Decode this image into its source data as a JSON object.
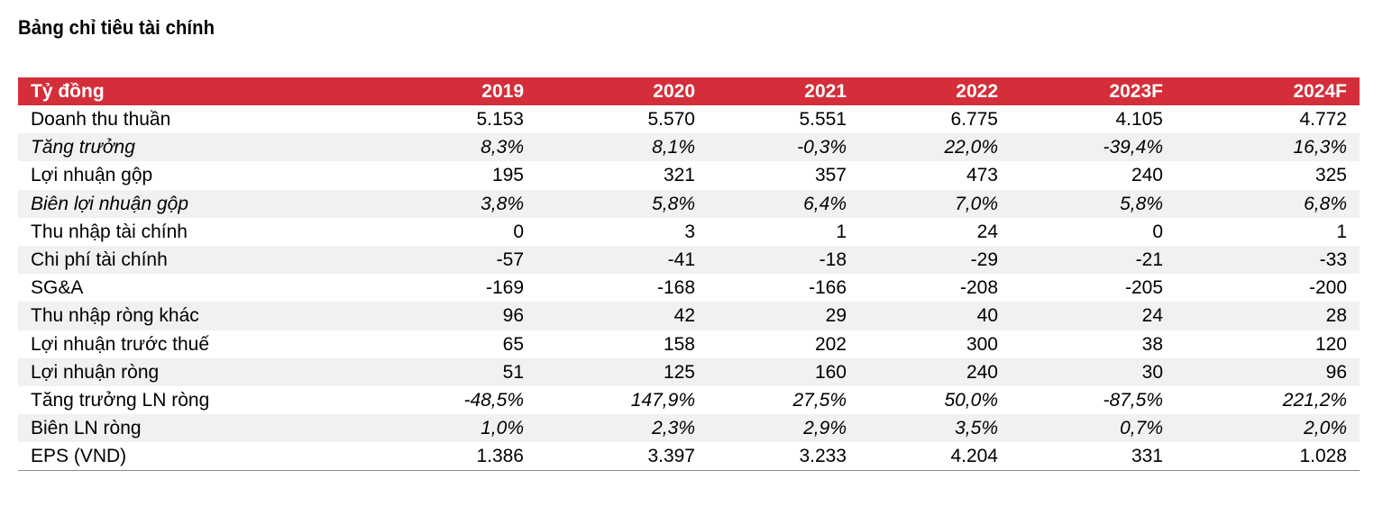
{
  "title": "Bảng chỉ tiêu tài chính",
  "header": {
    "label": "Tỷ đồng",
    "columns": [
      "2019",
      "2020",
      "2021",
      "2022",
      "2023F",
      "2024F"
    ]
  },
  "rows": [
    {
      "label": "Doanh thu thuần",
      "values": [
        "5.153",
        "5.570",
        "5.551",
        "6.775",
        "4.105",
        "4.772"
      ]
    },
    {
      "label": "Tăng trưởng",
      "values": [
        "8,3%",
        "8,1%",
        "-0,3%",
        "22,0%",
        "-39,4%",
        "16,3%"
      ]
    },
    {
      "label": "Lợi nhuận gộp",
      "values": [
        "195",
        "321",
        "357",
        "473",
        "240",
        "325"
      ]
    },
    {
      "label": "Biên lợi nhuận gộp",
      "values": [
        "3,8%",
        "5,8%",
        "6,4%",
        "7,0%",
        "5,8%",
        "6,8%"
      ]
    },
    {
      "label": "Thu nhập tài chính",
      "values": [
        "0",
        "3",
        "1",
        "24",
        "0",
        "1"
      ]
    },
    {
      "label": "Chi phí tài chính",
      "values": [
        "-57",
        "-41",
        "-18",
        "-29",
        "-21",
        "-33"
      ]
    },
    {
      "label": "SG&A",
      "values": [
        "-169",
        "-168",
        "-166",
        "-208",
        "-205",
        "-200"
      ]
    },
    {
      "label": "Thu nhập ròng khác",
      "values": [
        "96",
        "42",
        "29",
        "40",
        "24",
        "28"
      ]
    },
    {
      "label": "Lợi nhuận trước thuế",
      "values": [
        "65",
        "158",
        "202",
        "300",
        "38",
        "120"
      ]
    },
    {
      "label": "Lợi nhuận ròng",
      "values": [
        "51",
        "125",
        "160",
        "240",
        "30",
        "96"
      ]
    },
    {
      "label": "Tăng trưởng LN ròng",
      "values": [
        "-48,5%",
        "147,9%",
        "27,5%",
        "50,0%",
        "-87,5%",
        "221,2%"
      ]
    },
    {
      "label": "Biên LN ròng",
      "values": [
        "1,0%",
        "2,3%",
        "2,9%",
        "3,5%",
        "0,7%",
        "2,0%"
      ]
    },
    {
      "label": "EPS (VND)",
      "values": [
        "1.386",
        "3.397",
        "3.233",
        "4.204",
        "331",
        "1.028"
      ]
    }
  ]
}
